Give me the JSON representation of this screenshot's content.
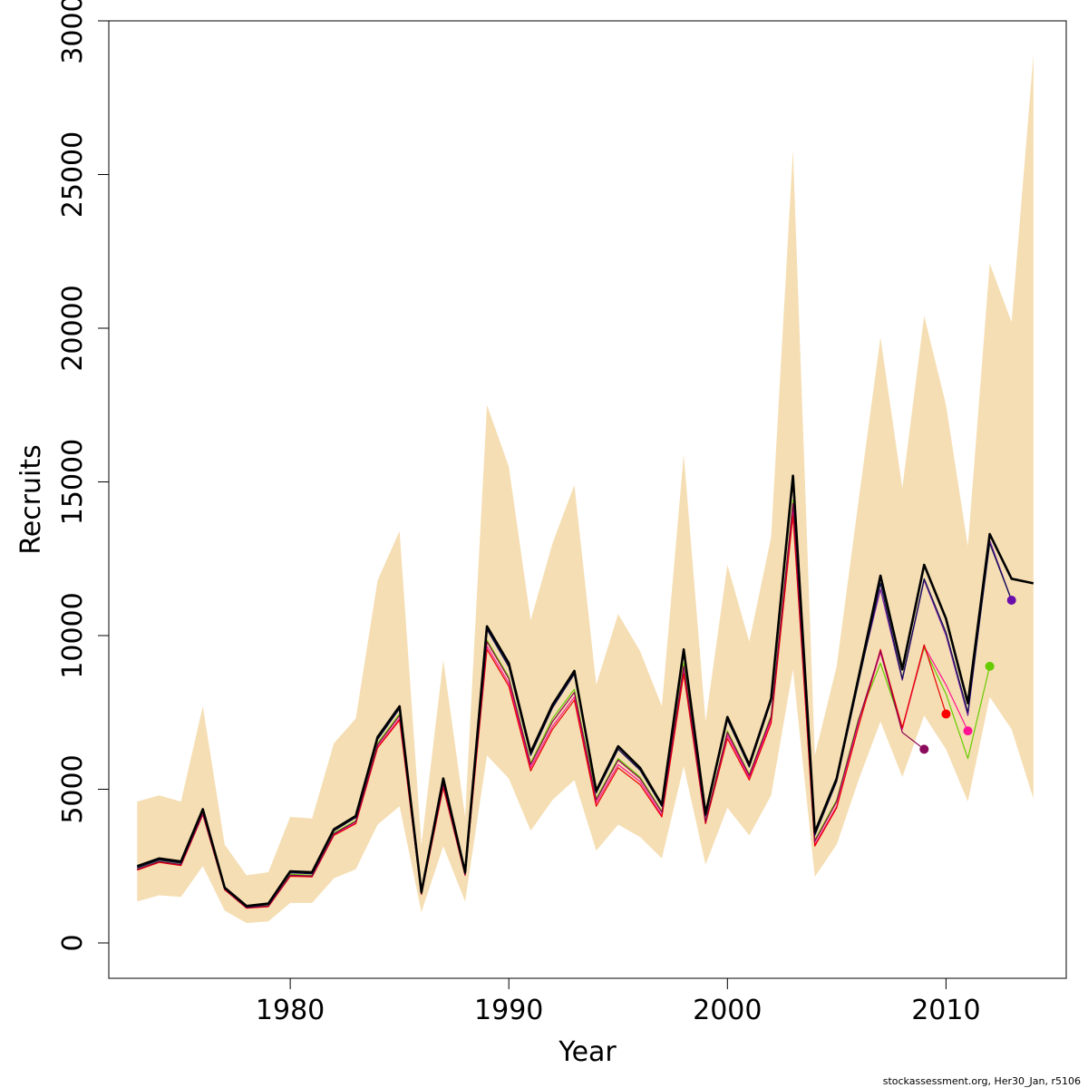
{
  "chart_data": {
    "type": "line",
    "xlabel": "Year",
    "ylabel": "Recruits",
    "xlim": [
      1971.7,
      2015.5
    ],
    "ylim": [
      -1150,
      30000
    ],
    "x_ticks": [
      1980,
      1990,
      2000,
      2010
    ],
    "y_ticks": [
      0,
      5000,
      10000,
      15000,
      20000,
      25000,
      30000
    ],
    "colors": {
      "band": "#F5DEB3",
      "final": "#000000",
      "retro": [
        "#0a0f4e",
        "#8b004f",
        "#e60000",
        "#ff1493",
        "#66cc00",
        "#7b1fa2"
      ],
      "retro_points": [
        "#8b0a5c",
        "#ff0000",
        "#ff1493",
        "#66cc00",
        "#6a0dad"
      ]
    },
    "confidence_band": {
      "years": [
        1973,
        1974,
        1975,
        1976,
        1977,
        1978,
        1979,
        1980,
        1981,
        1982,
        1983,
        1984,
        1985,
        1986,
        1987,
        1988,
        1989,
        1990,
        1991,
        1992,
        1993,
        1994,
        1995,
        1996,
        1997,
        1998,
        1999,
        2000,
        2001,
        2002,
        2003,
        2004,
        2005,
        2006,
        2007,
        2008,
        2009,
        2010,
        2011,
        2012,
        2013,
        2014
      ],
      "upper": [
        4600,
        4800,
        4600,
        7700,
        3200,
        2200,
        2300,
        4100,
        4050,
        6500,
        7300,
        11800,
        13400,
        3200,
        9200,
        4100,
        17500,
        15500,
        10500,
        13000,
        14900,
        8400,
        10700,
        9500,
        7700,
        15900,
        7200,
        12300,
        9800,
        13200,
        25800,
        6100,
        9000,
        14400,
        19700,
        14800,
        20400,
        17500,
        12900,
        22100,
        20200,
        28900
      ],
      "lower": [
        1350,
        1550,
        1500,
        2500,
        1050,
        650,
        700,
        1300,
        1300,
        2100,
        2400,
        3850,
        4450,
        1000,
        3150,
        1350,
        6100,
        5350,
        3650,
        4650,
        5300,
        3000,
        3850,
        3450,
        2750,
        5750,
        2550,
        4400,
        3500,
        4800,
        8900,
        2150,
        3200,
        5300,
        7200,
        5400,
        7400,
        6300,
        4600,
        8000,
        6950,
        4700
      ]
    },
    "series": [
      {
        "years": [
          1973,
          1974,
          1975,
          1976,
          1977,
          1978,
          1979,
          1980,
          1981,
          1982,
          1983,
          1984,
          1985,
          1986,
          1987,
          1988,
          1989,
          1990,
          1991,
          1992,
          1993,
          1994,
          1995,
          1996,
          1997,
          1998,
          1999,
          2000,
          2001,
          2002,
          2003,
          2004,
          2005,
          2006,
          2007,
          2008,
          2009,
          2010,
          2011,
          2012,
          2013,
          2014
        ],
        "values": [
          2500,
          2750,
          2650,
          4350,
          1800,
          1200,
          1280,
          2330,
          2300,
          3700,
          4130,
          6700,
          7700,
          1650,
          5350,
          2300,
          10300,
          9100,
          6200,
          7750,
          8850,
          4950,
          6400,
          5700,
          4500,
          9550,
          4200,
          7350,
          5800,
          7950,
          15200,
          3600,
          5350,
          8650,
          11950,
          8900,
          12300,
          10550,
          7800,
          13300,
          11850,
          11700
        ]
      },
      {
        "years": [
          1973,
          1974,
          1975,
          1976,
          1977,
          1978,
          1979,
          1980,
          1981,
          1982,
          1983,
          1984,
          1985,
          1986,
          1987,
          1988,
          1989,
          1990,
          1991,
          1992,
          1993,
          1994,
          1995,
          1996,
          1997,
          1998,
          1999,
          2000,
          2001,
          2002,
          2003,
          2004,
          2005,
          2006,
          2007,
          2008,
          2009,
          2010,
          2011,
          2012,
          2013
        ],
        "values": [
          2450,
          2700,
          2600,
          4300,
          1780,
          1170,
          1250,
          2280,
          2250,
          3650,
          4080,
          6620,
          7620,
          1620,
          5290,
          2260,
          10200,
          8980,
          6100,
          7650,
          8750,
          4880,
          6300,
          5620,
          4440,
          9450,
          4130,
          7260,
          5720,
          7860,
          15050,
          3500,
          5250,
          8500,
          11700,
          8600,
          11850,
          10100,
          7500,
          13000,
          11150
        ]
      },
      {
        "years": [
          1973,
          1974,
          1975,
          1976,
          1977,
          1978,
          1979,
          1980,
          1981,
          1982,
          1983,
          1984,
          1985,
          1986,
          1987,
          1988,
          1989,
          1990,
          1991,
          1992,
          1993,
          1994,
          1995,
          1996,
          1997,
          1998,
          1999,
          2000,
          2001,
          2002,
          2003,
          2004,
          2005,
          2006,
          2007,
          2008,
          2009
        ],
        "values": [
          2400,
          2650,
          2550,
          4200,
          1750,
          1150,
          1200,
          2200,
          2180,
          3550,
          3950,
          6450,
          7400,
          1600,
          5150,
          2220,
          9800,
          8600,
          5800,
          7200,
          8150,
          4650,
          5950,
          5350,
          4250,
          9000,
          3950,
          6850,
          5450,
          7350,
          14300,
          3300,
          4600,
          7250,
          9500,
          6850,
          6300
        ]
      },
      {
        "years": [
          1973,
          1974,
          1975,
          1976,
          1977,
          1978,
          1979,
          1980,
          1981,
          1982,
          1983,
          1984,
          1985,
          1986,
          1987,
          1988,
          1989,
          1990,
          1991,
          1992,
          1993,
          1994,
          1995,
          1996,
          1997,
          1998,
          1999,
          2000,
          2001,
          2002,
          2003,
          2004,
          2005,
          2006,
          2007,
          2008,
          2009,
          2010
        ],
        "values": [
          2370,
          2620,
          2520,
          4170,
          1730,
          1130,
          1180,
          2170,
          2150,
          3500,
          3880,
          6350,
          7250,
          1580,
          5050,
          2200,
          9550,
          8350,
          5600,
          6950,
          7900,
          4450,
          5700,
          5150,
          4100,
          8750,
          3880,
          6650,
          5300,
          7150,
          13900,
          3150,
          4400,
          7050,
          9550,
          7000,
          9700,
          7450
        ]
      },
      {
        "years": [
          1973,
          1974,
          1975,
          1976,
          1977,
          1978,
          1979,
          1980,
          1981,
          1982,
          1983,
          1984,
          1985,
          1986,
          1987,
          1988,
          1989,
          1990,
          1991,
          1992,
          1993,
          1994,
          1995,
          1996,
          1997,
          1998,
          1999,
          2000,
          2001,
          2002,
          2003,
          2004,
          2005,
          2006,
          2007,
          2008,
          2009,
          2010,
          2011
        ],
        "values": [
          2390,
          2640,
          2540,
          4190,
          1740,
          1140,
          1190,
          2190,
          2160,
          3520,
          3900,
          6380,
          7300,
          1590,
          5100,
          2210,
          9650,
          8450,
          5700,
          7050,
          8000,
          4550,
          5800,
          5250,
          4150,
          8850,
          3900,
          6750,
          5380,
          7250,
          14050,
          3200,
          4450,
          7100,
          9450,
          6950,
          9650,
          8400,
          6900
        ]
      },
      {
        "years": [
          1973,
          1974,
          1975,
          1976,
          1977,
          1978,
          1979,
          1980,
          1981,
          1982,
          1983,
          1984,
          1985,
          1986,
          1987,
          1988,
          1989,
          1990,
          1991,
          1992,
          1993,
          1994,
          1995,
          1996,
          1997,
          1998,
          1999,
          2000,
          2001,
          2002,
          2003,
          2004,
          2005,
          2006,
          2007,
          2008,
          2009,
          2010,
          2011,
          2012
        ],
        "values": [
          2410,
          2660,
          2560,
          4220,
          1760,
          1160,
          1210,
          2230,
          2200,
          3580,
          3980,
          6500,
          7450,
          1610,
          5200,
          2230,
          9850,
          8650,
          5850,
          7300,
          8250,
          4700,
          6000,
          5400,
          4280,
          9100,
          3970,
          6900,
          5480,
          7400,
          14400,
          3350,
          4650,
          7300,
          9100,
          7000,
          9600,
          8100,
          6000,
          9000
        ]
      },
      {
        "years": [
          1973,
          1974,
          1975,
          1976,
          1977,
          1978,
          1979,
          1980,
          1981,
          1982,
          1983,
          1984,
          1985,
          1986,
          1987,
          1988,
          1989,
          1990,
          1991,
          1992,
          1993,
          1994,
          1995,
          1996,
          1997,
          1998,
          1999,
          2000,
          2001,
          2002,
          2003,
          2004,
          2005,
          2006,
          2007,
          2008,
          2009,
          2010,
          2011,
          2012,
          2013
        ],
        "values": [
          2480,
          2730,
          2630,
          4330,
          1790,
          1190,
          1270,
          2310,
          2280,
          3680,
          4100,
          6680,
          7680,
          1640,
          5330,
          2280,
          10250,
          9050,
          6150,
          7700,
          8800,
          4920,
          6360,
          5660,
          4480,
          9500,
          4170,
          7300,
          5760,
          7900,
          15150,
          3550,
          5300,
          8600,
          11500,
          8550,
          11800,
          10000,
          7400,
          13100,
          11150
        ]
      }
    ],
    "endpoints": [
      {
        "year": 2009,
        "value": 6300
      },
      {
        "year": 2010,
        "value": 7450
      },
      {
        "year": 2011,
        "value": 6900
      },
      {
        "year": 2012,
        "value": 9000
      },
      {
        "year": 2013,
        "value": 11150
      }
    ]
  },
  "footer": "stockassessment.org, Her30_Jan, r5106"
}
